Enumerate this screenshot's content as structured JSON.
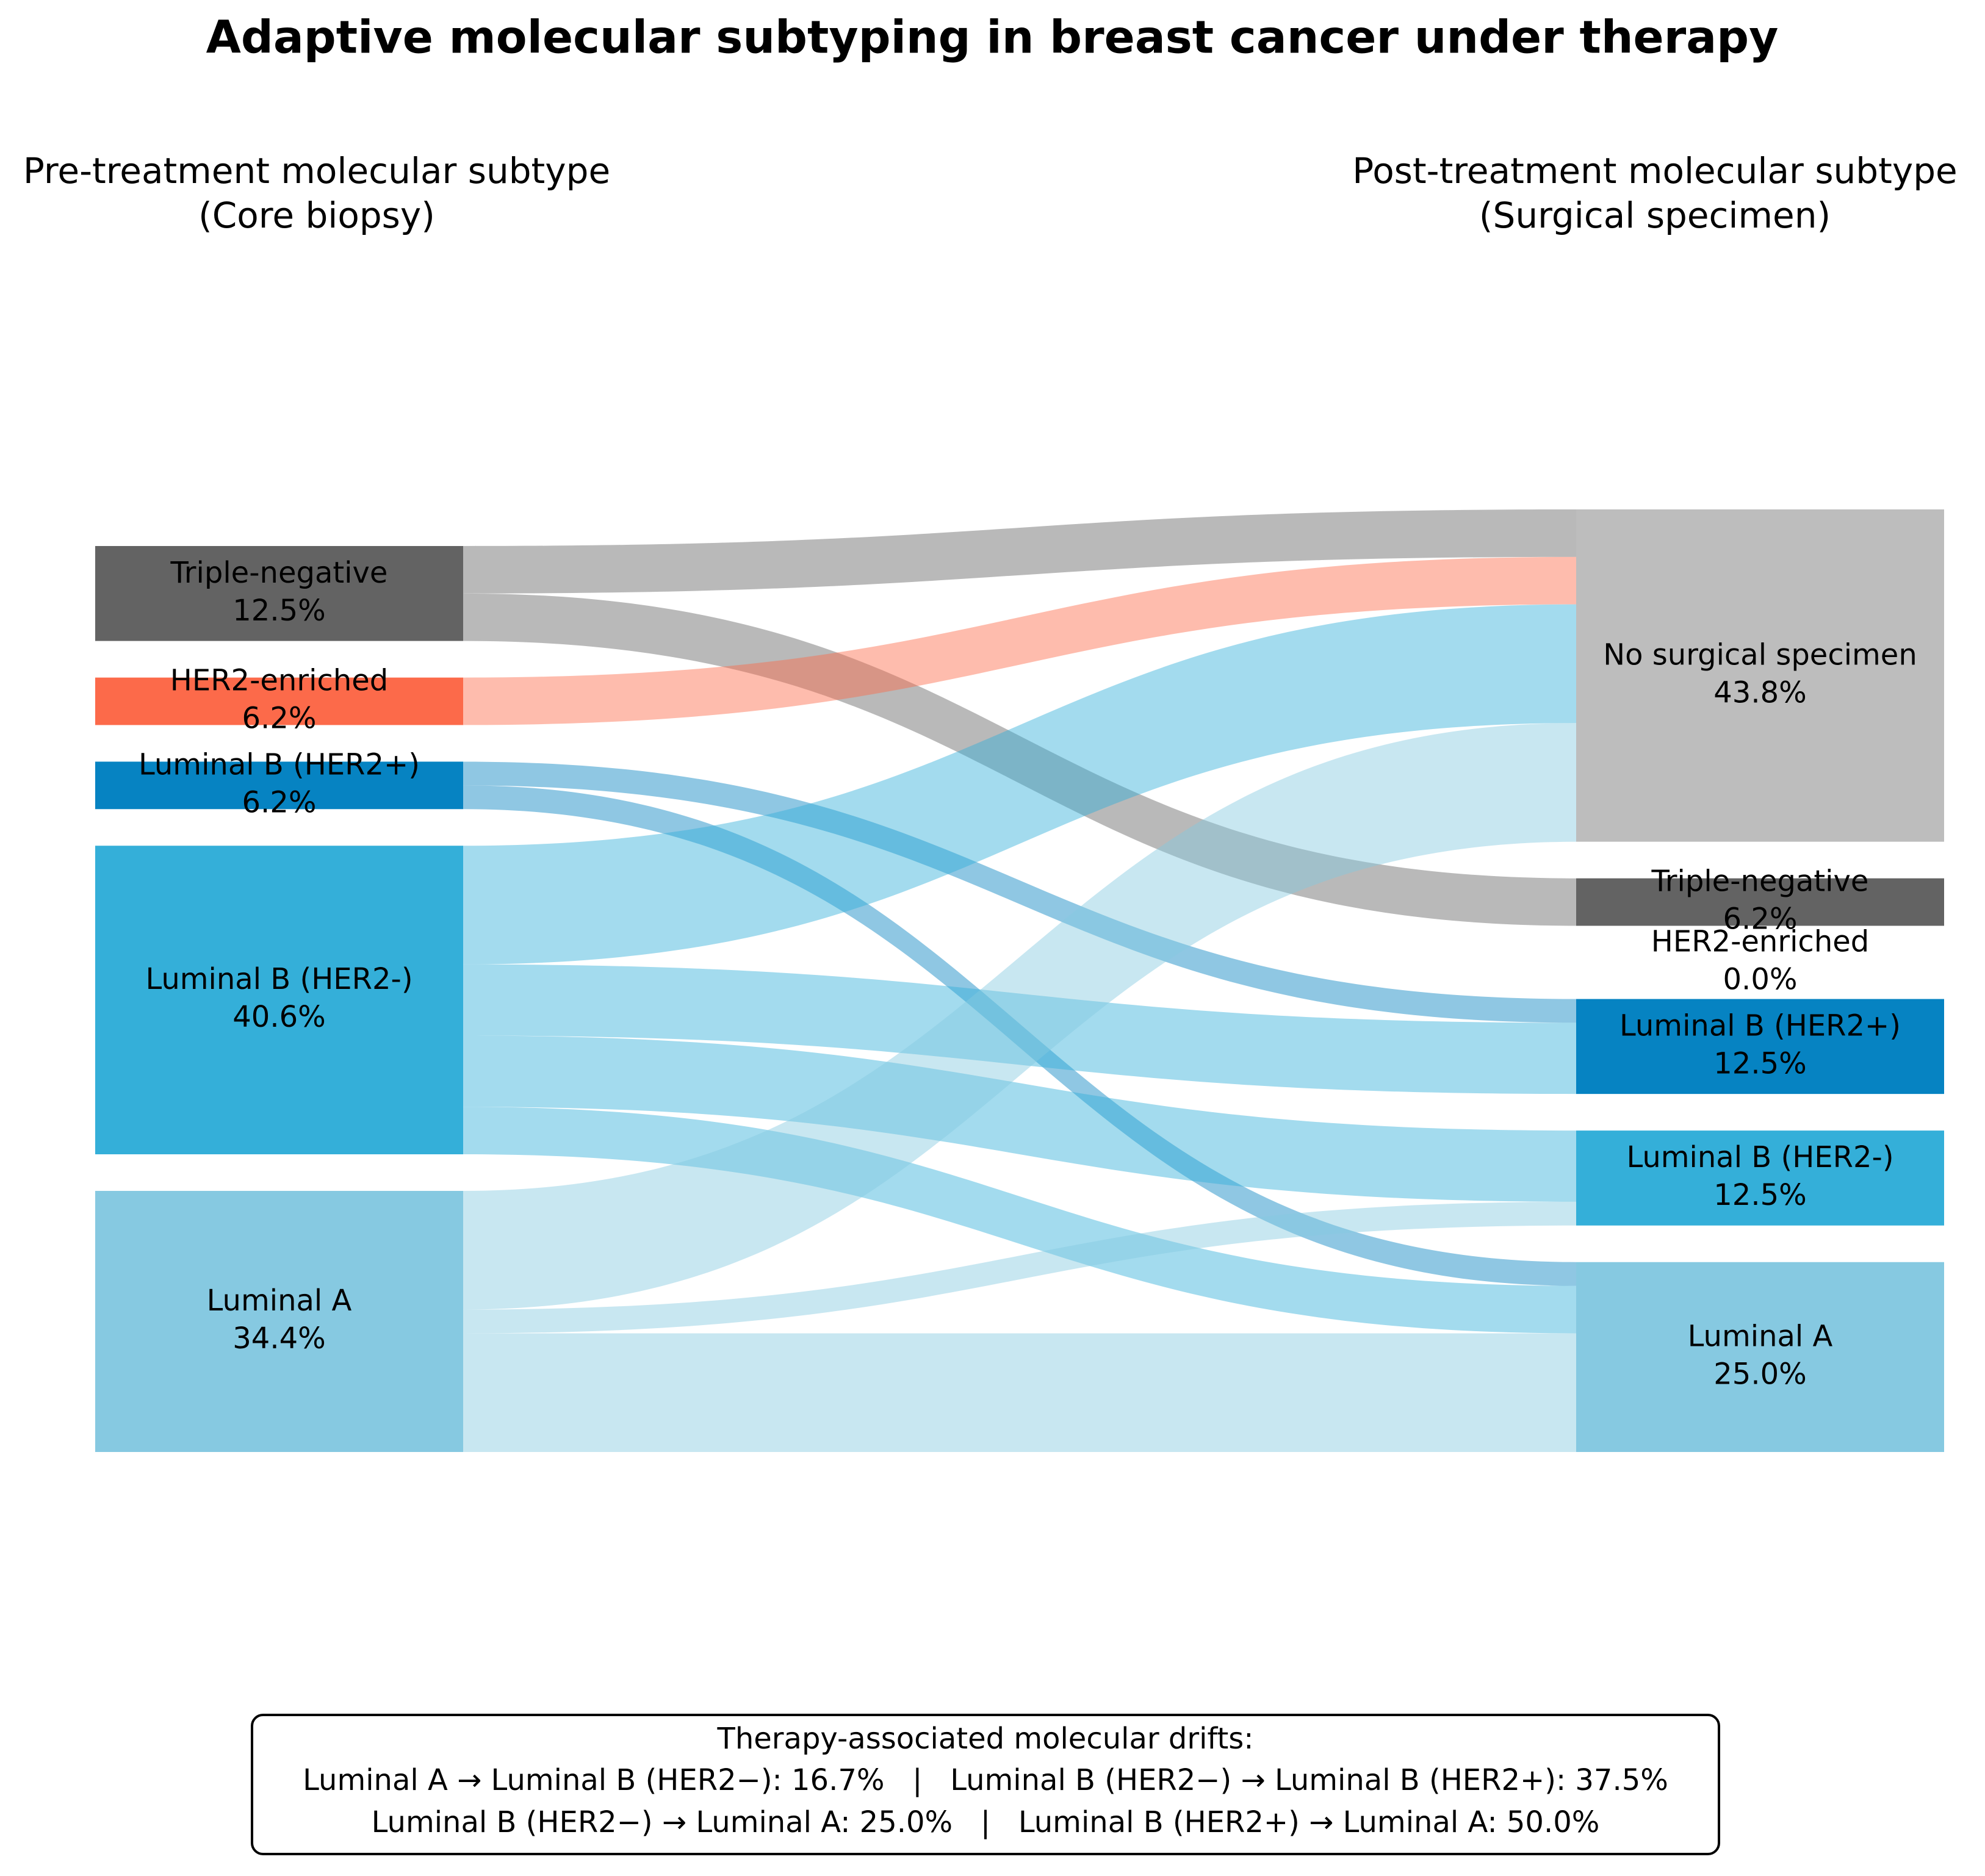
{
  "chart_data": {
    "type": "sankey",
    "title": "Adaptive molecular subtyping in breast cancer under therapy",
    "left_header": [
      "Pre-treatment molecular subtype",
      "(Core biopsy)"
    ],
    "right_header": [
      "Post-treatment molecular subtype",
      "(Surgical specimen)"
    ],
    "link_opacity": 0.45,
    "left_nodes": [
      {
        "name": "Triple-negative",
        "value": 12.5,
        "value_label": "12.5%",
        "color": "#636363",
        "flows": [
          6.25,
          6.25,
          0,
          0,
          0,
          0
        ]
      },
      {
        "name": "HER2-enriched",
        "value": 6.25,
        "value_label": "6.2%",
        "color": "#fc6a4a",
        "flows": [
          6.25,
          0,
          0,
          0,
          0,
          0
        ]
      },
      {
        "name": "Luminal B (HER2+)",
        "value": 6.25,
        "value_label": "6.2%",
        "color": "#0683c2",
        "flows": [
          0,
          0,
          0,
          3.125,
          0,
          3.125
        ]
      },
      {
        "name": "Luminal B (HER2-)",
        "value": 40.625,
        "value_label": "40.6%",
        "color": "#34afd9",
        "flows": [
          15.625,
          0,
          0,
          9.375,
          9.375,
          6.25
        ]
      },
      {
        "name": "Luminal A",
        "value": 34.375,
        "value_label": "34.4%",
        "color": "#86c9e1",
        "flows": [
          15.625,
          0,
          0,
          0,
          3.125,
          15.625
        ]
      }
    ],
    "right_nodes": [
      {
        "name": "No surgical specimen",
        "value": 43.75,
        "value_label": "43.8%",
        "color": "#bdbdbd"
      },
      {
        "name": "Triple-negative",
        "value": 6.25,
        "value_label": "6.2%",
        "color": "#636363"
      },
      {
        "name": "HER2-enriched",
        "value": 0,
        "value_label": "0.0%",
        "color": "#fc6a4a"
      },
      {
        "name": "Luminal B (HER2+)",
        "value": 12.5,
        "value_label": "12.5%",
        "color": "#0683c2"
      },
      {
        "name": "Luminal B (HER2-)",
        "value": 12.5,
        "value_label": "12.5%",
        "color": "#34afd9"
      },
      {
        "name": "Luminal A",
        "value": 25.0,
        "value_label": "25.0%",
        "color": "#86c9e1"
      }
    ],
    "note": {
      "title": "Therapy-associated molecular drifts:",
      "lines": [
        "Luminal A → Luminal B (HER2−): 16.7%   |   Luminal B (HER2−) → Luminal B (HER2+): 37.5%",
        "Luminal B (HER2−) → Luminal A: 25.0%   |   Luminal B (HER2+) → Luminal A: 50.0%"
      ]
    }
  }
}
